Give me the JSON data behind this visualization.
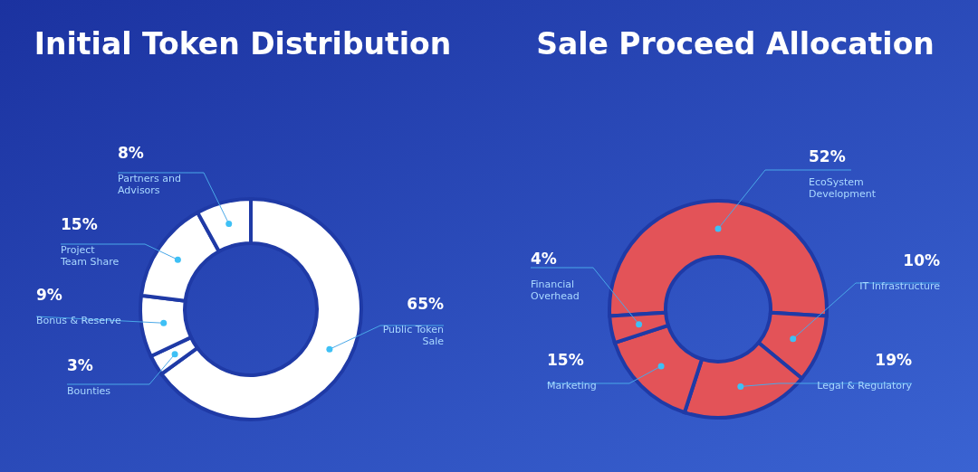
{
  "chart_data": [
    {
      "type": "donut",
      "title": "Initial Token Distribution",
      "categories": [
        "Public Token Sale",
        "Bounties",
        "Bonus & Reserve",
        "Project Team Share",
        "Partners and Advisors"
      ],
      "values": [
        65,
        3,
        9,
        15,
        8
      ],
      "colors": [
        "#ffffff",
        "#ffffff",
        "#ffffff",
        "#ffffff",
        "#ffffff"
      ],
      "value_labels": [
        "65%",
        "3%",
        "9%",
        "15%",
        "8%"
      ]
    },
    {
      "type": "donut",
      "title": "Sale Proceed Allocation",
      "categories": [
        "EcoSystem Development",
        "IT Infrastructure",
        "Legal & Regulatory",
        "Marketing",
        "Financial Overhead"
      ],
      "values": [
        52,
        10,
        19,
        15,
        4
      ],
      "colors": [
        "#e35358",
        "#e35358",
        "#e35358",
        "#e35358",
        "#e35358"
      ],
      "value_labels": [
        "52%",
        "10%",
        "19%",
        "15%",
        "4%"
      ]
    }
  ]
}
